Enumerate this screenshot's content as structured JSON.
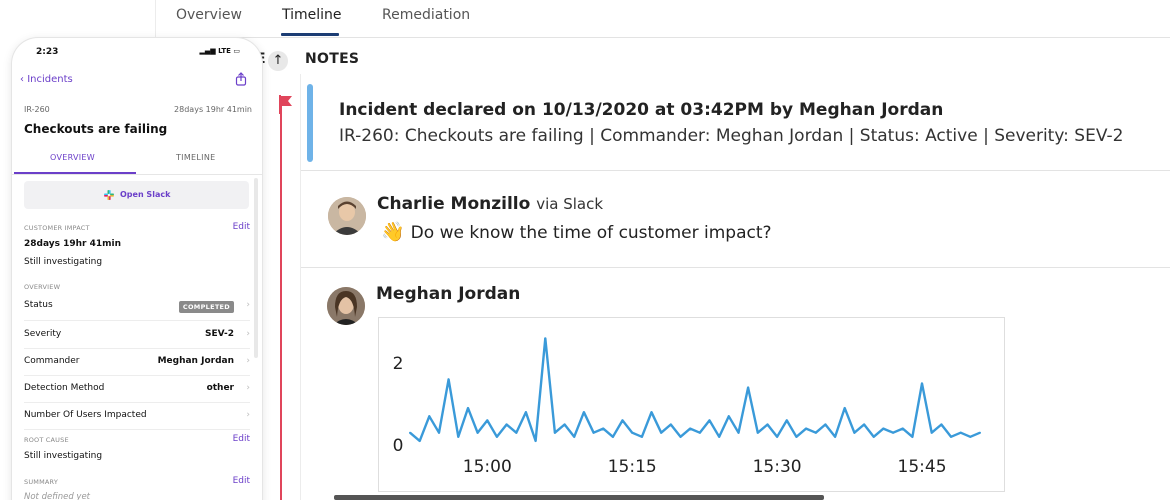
{
  "tabs": [
    {
      "label": "Overview"
    },
    {
      "label": "Timeline"
    },
    {
      "label": "Remediation"
    }
  ],
  "notes": {
    "header": "NOTES",
    "partial_header": "E"
  },
  "declared": {
    "title": "Incident declared on 10/13/2020 at 03:42PM by Meghan Jordan",
    "subtitle": "IR-260: Checkouts are failing | Commander: Meghan Jordan | Status: Active | Severity: SEV-2"
  },
  "messages": [
    {
      "author": "Charlie Monzillo",
      "via": "via Slack",
      "emoji": "👋",
      "text": "Do we know the time of customer impact?"
    },
    {
      "author": "Meghan Jordan"
    }
  ],
  "chart_data": {
    "type": "line",
    "x_ticks": [
      "15:00",
      "15:15",
      "15:30",
      "15:45"
    ],
    "y_ticks": [
      "0",
      "2"
    ],
    "ylim": [
      0,
      2.6
    ],
    "color": "#3a9ad9",
    "x": [
      "14:52",
      "14:53",
      "14:54",
      "14:55",
      "14:56",
      "14:57",
      "14:58",
      "14:59",
      "15:00",
      "15:01",
      "15:02",
      "15:03",
      "15:04",
      "15:05",
      "15:06",
      "15:07",
      "15:08",
      "15:09",
      "15:10",
      "15:11",
      "15:12",
      "15:13",
      "15:14",
      "15:15",
      "15:16",
      "15:17",
      "15:18",
      "15:19",
      "15:20",
      "15:21",
      "15:22",
      "15:23",
      "15:24",
      "15:25",
      "15:26",
      "15:27",
      "15:28",
      "15:29",
      "15:30",
      "15:31",
      "15:32",
      "15:33",
      "15:34",
      "15:35",
      "15:36",
      "15:37",
      "15:38",
      "15:39",
      "15:40",
      "15:41",
      "15:42",
      "15:43",
      "15:44",
      "15:45",
      "15:46",
      "15:47",
      "15:48",
      "15:49",
      "15:50",
      "15:51"
    ],
    "values": [
      0.3,
      0.1,
      0.7,
      0.3,
      1.6,
      0.2,
      0.9,
      0.3,
      0.6,
      0.2,
      0.5,
      0.3,
      0.8,
      0.1,
      2.6,
      0.3,
      0.5,
      0.2,
      0.8,
      0.3,
      0.4,
      0.2,
      0.6,
      0.3,
      0.2,
      0.8,
      0.3,
      0.5,
      0.2,
      0.4,
      0.3,
      0.6,
      0.2,
      0.7,
      0.3,
      1.4,
      0.3,
      0.5,
      0.2,
      0.6,
      0.2,
      0.4,
      0.3,
      0.5,
      0.2,
      0.9,
      0.3,
      0.5,
      0.2,
      0.4,
      0.3,
      0.4,
      0.2,
      1.5,
      0.3,
      0.5,
      0.2,
      0.3,
      0.2,
      0.3
    ]
  },
  "phone": {
    "time": "2:23",
    "carrier": "LTE",
    "back_label": "Incidents",
    "incident_id": "IR-260",
    "elapsed": "28days 19hr 41min",
    "title": "Checkouts are failing",
    "tabs": {
      "overview": "OVERVIEW",
      "timeline": "TIMELINE"
    },
    "slack_button": "Open Slack",
    "customer_impact": {
      "section": "CUSTOMER IMPACT",
      "edit": "Edit",
      "duration": "28days 19hr 41min",
      "note": "Still investigating"
    },
    "overview_section": "OVERVIEW",
    "rows": [
      {
        "label": "Status",
        "badge": "COMPLETED"
      },
      {
        "label": "Severity",
        "value": "SEV-2"
      },
      {
        "label": "Commander",
        "value": "Meghan Jordan"
      },
      {
        "label": "Detection Method",
        "value": "other"
      },
      {
        "label": "Number Of Users Impacted",
        "value": ""
      }
    ],
    "root_cause": {
      "section": "ROOT CAUSE",
      "edit": "Edit",
      "text": "Still investigating"
    },
    "summary": {
      "section": "SUMMARY",
      "edit": "Edit",
      "text": "Not defined yet"
    }
  }
}
